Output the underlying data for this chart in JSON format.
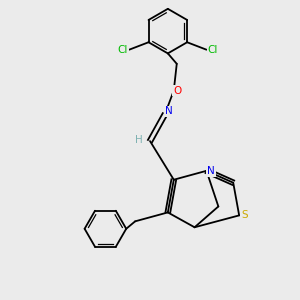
{
  "background_color": "#ebebeb",
  "atom_colors": {
    "C": "#000000",
    "H": "#7fb2b2",
    "N": "#0000ee",
    "O": "#ff0000",
    "S": "#ccaa00",
    "Cl": "#00bb00"
  }
}
